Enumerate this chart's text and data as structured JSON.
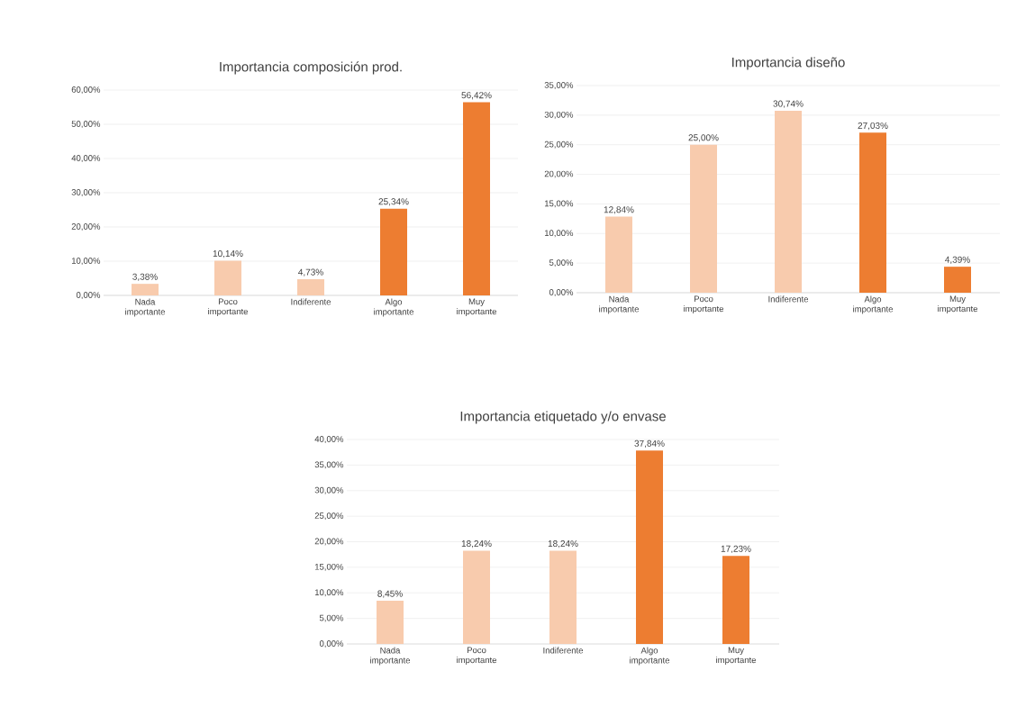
{
  "chart_data": [
    {
      "type": "bar",
      "title": "Importancia composición prod.",
      "categories": [
        "Nada importante",
        "Poco importante",
        "Indiferente",
        "Algo importante",
        "Muy importante"
      ],
      "values": [
        3.38,
        10.14,
        4.73,
        25.34,
        56.42
      ],
      "value_labels": [
        "3,38%",
        "10,14%",
        "4,73%",
        "25,34%",
        "56,42%"
      ],
      "colors": [
        "#f8cbad",
        "#f8cbad",
        "#f8cbad",
        "#ed7d31",
        "#ed7d31"
      ],
      "ylim": [
        0,
        60
      ],
      "yticks": [
        {
          "value": 0,
          "label": "0,00%"
        },
        {
          "value": 10,
          "label": "10,00%"
        },
        {
          "value": 20,
          "label": "20,00%"
        },
        {
          "value": 30,
          "label": "30,00%"
        },
        {
          "value": 40,
          "label": "40,00%"
        },
        {
          "value": 50,
          "label": "50,00%"
        },
        {
          "value": 60,
          "label": "60,00%"
        }
      ],
      "grid": "y"
    },
    {
      "type": "bar",
      "title": "Importancia diseño",
      "categories": [
        "Nada importante",
        "Poco importante",
        "Indiferente",
        "Algo importante",
        "Muy importante"
      ],
      "values": [
        12.84,
        25.0,
        30.74,
        27.03,
        4.39
      ],
      "value_labels": [
        "12,84%",
        "25,00%",
        "30,74%",
        "27,03%",
        "4,39%"
      ],
      "colors": [
        "#f8cbad",
        "#f8cbad",
        "#f8cbad",
        "#ed7d31",
        "#ed7d31"
      ],
      "ylim": [
        0,
        35
      ],
      "yticks": [
        {
          "value": 0,
          "label": "0,00%"
        },
        {
          "value": 5,
          "label": "5,00%"
        },
        {
          "value": 10,
          "label": "10,00%"
        },
        {
          "value": 15,
          "label": "15,00%"
        },
        {
          "value": 20,
          "label": "20,00%"
        },
        {
          "value": 25,
          "label": "25,00%"
        },
        {
          "value": 30,
          "label": "30,00%"
        },
        {
          "value": 35,
          "label": "35,00%"
        }
      ],
      "grid": "y"
    },
    {
      "type": "bar",
      "title": "Importancia etiquetado y/o envase",
      "categories": [
        "Nada importante",
        "Poco importante",
        "Indiferente",
        "Algo importante",
        "Muy importante"
      ],
      "values": [
        8.45,
        18.24,
        18.24,
        37.84,
        17.23
      ],
      "value_labels": [
        "8,45%",
        "18,24%",
        "18,24%",
        "37,84%",
        "17,23%"
      ],
      "colors": [
        "#f8cbad",
        "#f8cbad",
        "#f8cbad",
        "#ed7d31",
        "#ed7d31"
      ],
      "ylim": [
        0,
        40
      ],
      "yticks": [
        {
          "value": 0,
          "label": "0,00%"
        },
        {
          "value": 5,
          "label": "5,00%"
        },
        {
          "value": 10,
          "label": "10,00%"
        },
        {
          "value": 15,
          "label": "15,00%"
        },
        {
          "value": 20,
          "label": "20,00%"
        },
        {
          "value": 25,
          "label": "25,00%"
        },
        {
          "value": 30,
          "label": "30,00%"
        },
        {
          "value": 35,
          "label": "35,00%"
        },
        {
          "value": 40,
          "label": "40,00%"
        }
      ],
      "grid": "y"
    }
  ]
}
